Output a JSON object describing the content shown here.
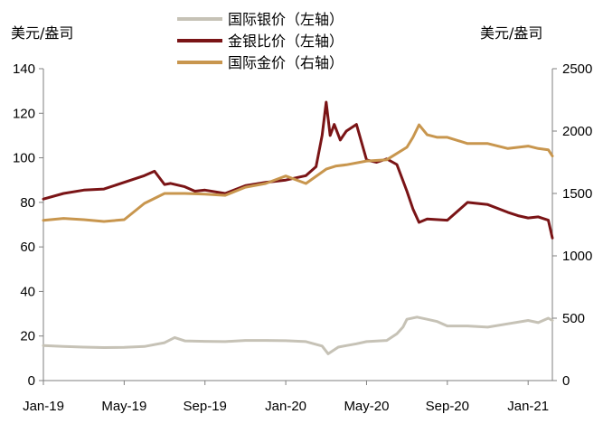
{
  "chart_data": {
    "type": "line",
    "left_unit_label": "美元/盎司",
    "right_unit_label": "美元/盎司",
    "x_tick_labels": [
      "Jan-19",
      "May-19",
      "Sep-19",
      "Jan-20",
      "May-20",
      "Sep-20",
      "Jan-21"
    ],
    "x_range": [
      0,
      25.2
    ],
    "y_left_range": [
      0,
      140
    ],
    "y_left_ticks": [
      "0",
      "20",
      "40",
      "60",
      "80",
      "100",
      "120",
      "140"
    ],
    "y_right_range": [
      0,
      2500
    ],
    "y_right_ticks": [
      "0",
      "500",
      "1000",
      "1500",
      "2000",
      "2500"
    ],
    "grid": false,
    "legend_position": "top-center",
    "series": [
      {
        "name": "国际银价（左轴）",
        "axis": "left",
        "color": "#c6c2b6",
        "x": [
          0,
          1,
          2,
          3,
          4,
          5,
          6,
          6.5,
          7,
          8,
          9,
          10,
          11,
          12,
          13,
          13.8,
          14.1,
          14.6,
          15,
          15.5,
          16,
          17,
          17.5,
          17.8,
          18,
          18.5,
          19,
          19.5,
          20,
          21,
          22,
          23,
          24,
          24.5,
          25,
          25.2
        ],
        "values": [
          15.7,
          15.3,
          15.0,
          14.8,
          14.9,
          15.3,
          17.0,
          19.3,
          17.8,
          17.6,
          17.5,
          18.0,
          18.0,
          17.9,
          17.5,
          15.5,
          12.0,
          15.0,
          15.7,
          16.5,
          17.5,
          18.0,
          21.0,
          24.0,
          27.5,
          28.5,
          27.5,
          26.5,
          24.5,
          24.5,
          24.0,
          25.5,
          27.0,
          26.0,
          28.0,
          27.0
        ]
      },
      {
        "name": "金银比价（左轴）",
        "axis": "left",
        "color": "#7a1416",
        "x": [
          0,
          1,
          2,
          3,
          4,
          5,
          5.5,
          6,
          6.3,
          7,
          7.5,
          8,
          9,
          10,
          11,
          12,
          13,
          13.5,
          13.8,
          14,
          14.2,
          14.4,
          14.7,
          15,
          15.5,
          16,
          16.5,
          17,
          17.5,
          18,
          18.3,
          18.6,
          19,
          20,
          21,
          22,
          23,
          23.5,
          24,
          24.5,
          25,
          25.2
        ],
        "values": [
          81.5,
          84.0,
          85.5,
          86.0,
          89.0,
          92.0,
          94.0,
          88.0,
          88.5,
          87.0,
          85.0,
          85.5,
          84.0,
          87.5,
          89.0,
          90.0,
          92.0,
          96.0,
          110.0,
          125.0,
          110.0,
          115.0,
          108.0,
          112.0,
          115.0,
          99.0,
          98.0,
          99.5,
          97.0,
          85.0,
          77.0,
          71.0,
          72.5,
          72.0,
          80.0,
          79.0,
          75.5,
          74.0,
          73.0,
          73.5,
          72.0,
          64.0
        ]
      },
      {
        "name": "国际金价（右轴）",
        "axis": "right",
        "color": "#c8964e",
        "x": [
          0,
          1,
          2,
          3,
          4,
          5,
          6,
          7,
          8,
          9,
          10,
          11,
          12,
          13,
          14,
          14.5,
          15,
          16,
          17,
          18,
          18.3,
          18.6,
          19,
          19.5,
          20,
          21,
          22,
          23,
          24,
          24.5,
          25,
          25.2
        ],
        "values": [
          1285,
          1300,
          1290,
          1275,
          1290,
          1420,
          1500,
          1500,
          1495,
          1485,
          1550,
          1580,
          1640,
          1580,
          1695,
          1720,
          1730,
          1760,
          1770,
          1870,
          1950,
          2050,
          1970,
          1950,
          1950,
          1900,
          1900,
          1860,
          1880,
          1860,
          1850,
          1800
        ]
      }
    ]
  }
}
